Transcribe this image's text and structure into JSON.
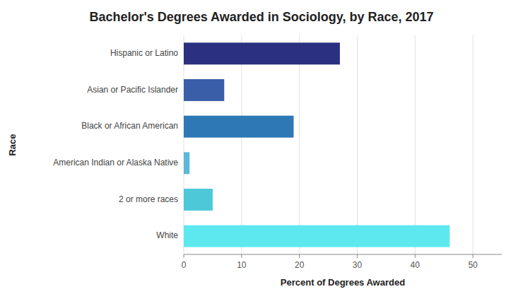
{
  "chart_data": {
    "type": "bar",
    "orientation": "horizontal",
    "title": "Bachelor's Degrees Awarded in Sociology, by Race, 2017",
    "categories": [
      "White",
      "2 or more races",
      "American Indian or Alaska Native",
      "Black or African American",
      "Asian or Pacific Islander",
      "Hispanic or Latino"
    ],
    "values": [
      46,
      5,
      1,
      19,
      7,
      27
    ],
    "colors": [
      "#5de8f0",
      "#4dc8d8",
      "#5bb8d8",
      "#2e78b5",
      "#3a5fa8",
      "#2b3080"
    ],
    "xlabel": "Percent of Degrees Awarded",
    "ylabel": "Race",
    "xlim": [
      0,
      55
    ],
    "xticks": [
      0,
      10,
      20,
      30,
      40,
      50
    ],
    "grid": true
  }
}
